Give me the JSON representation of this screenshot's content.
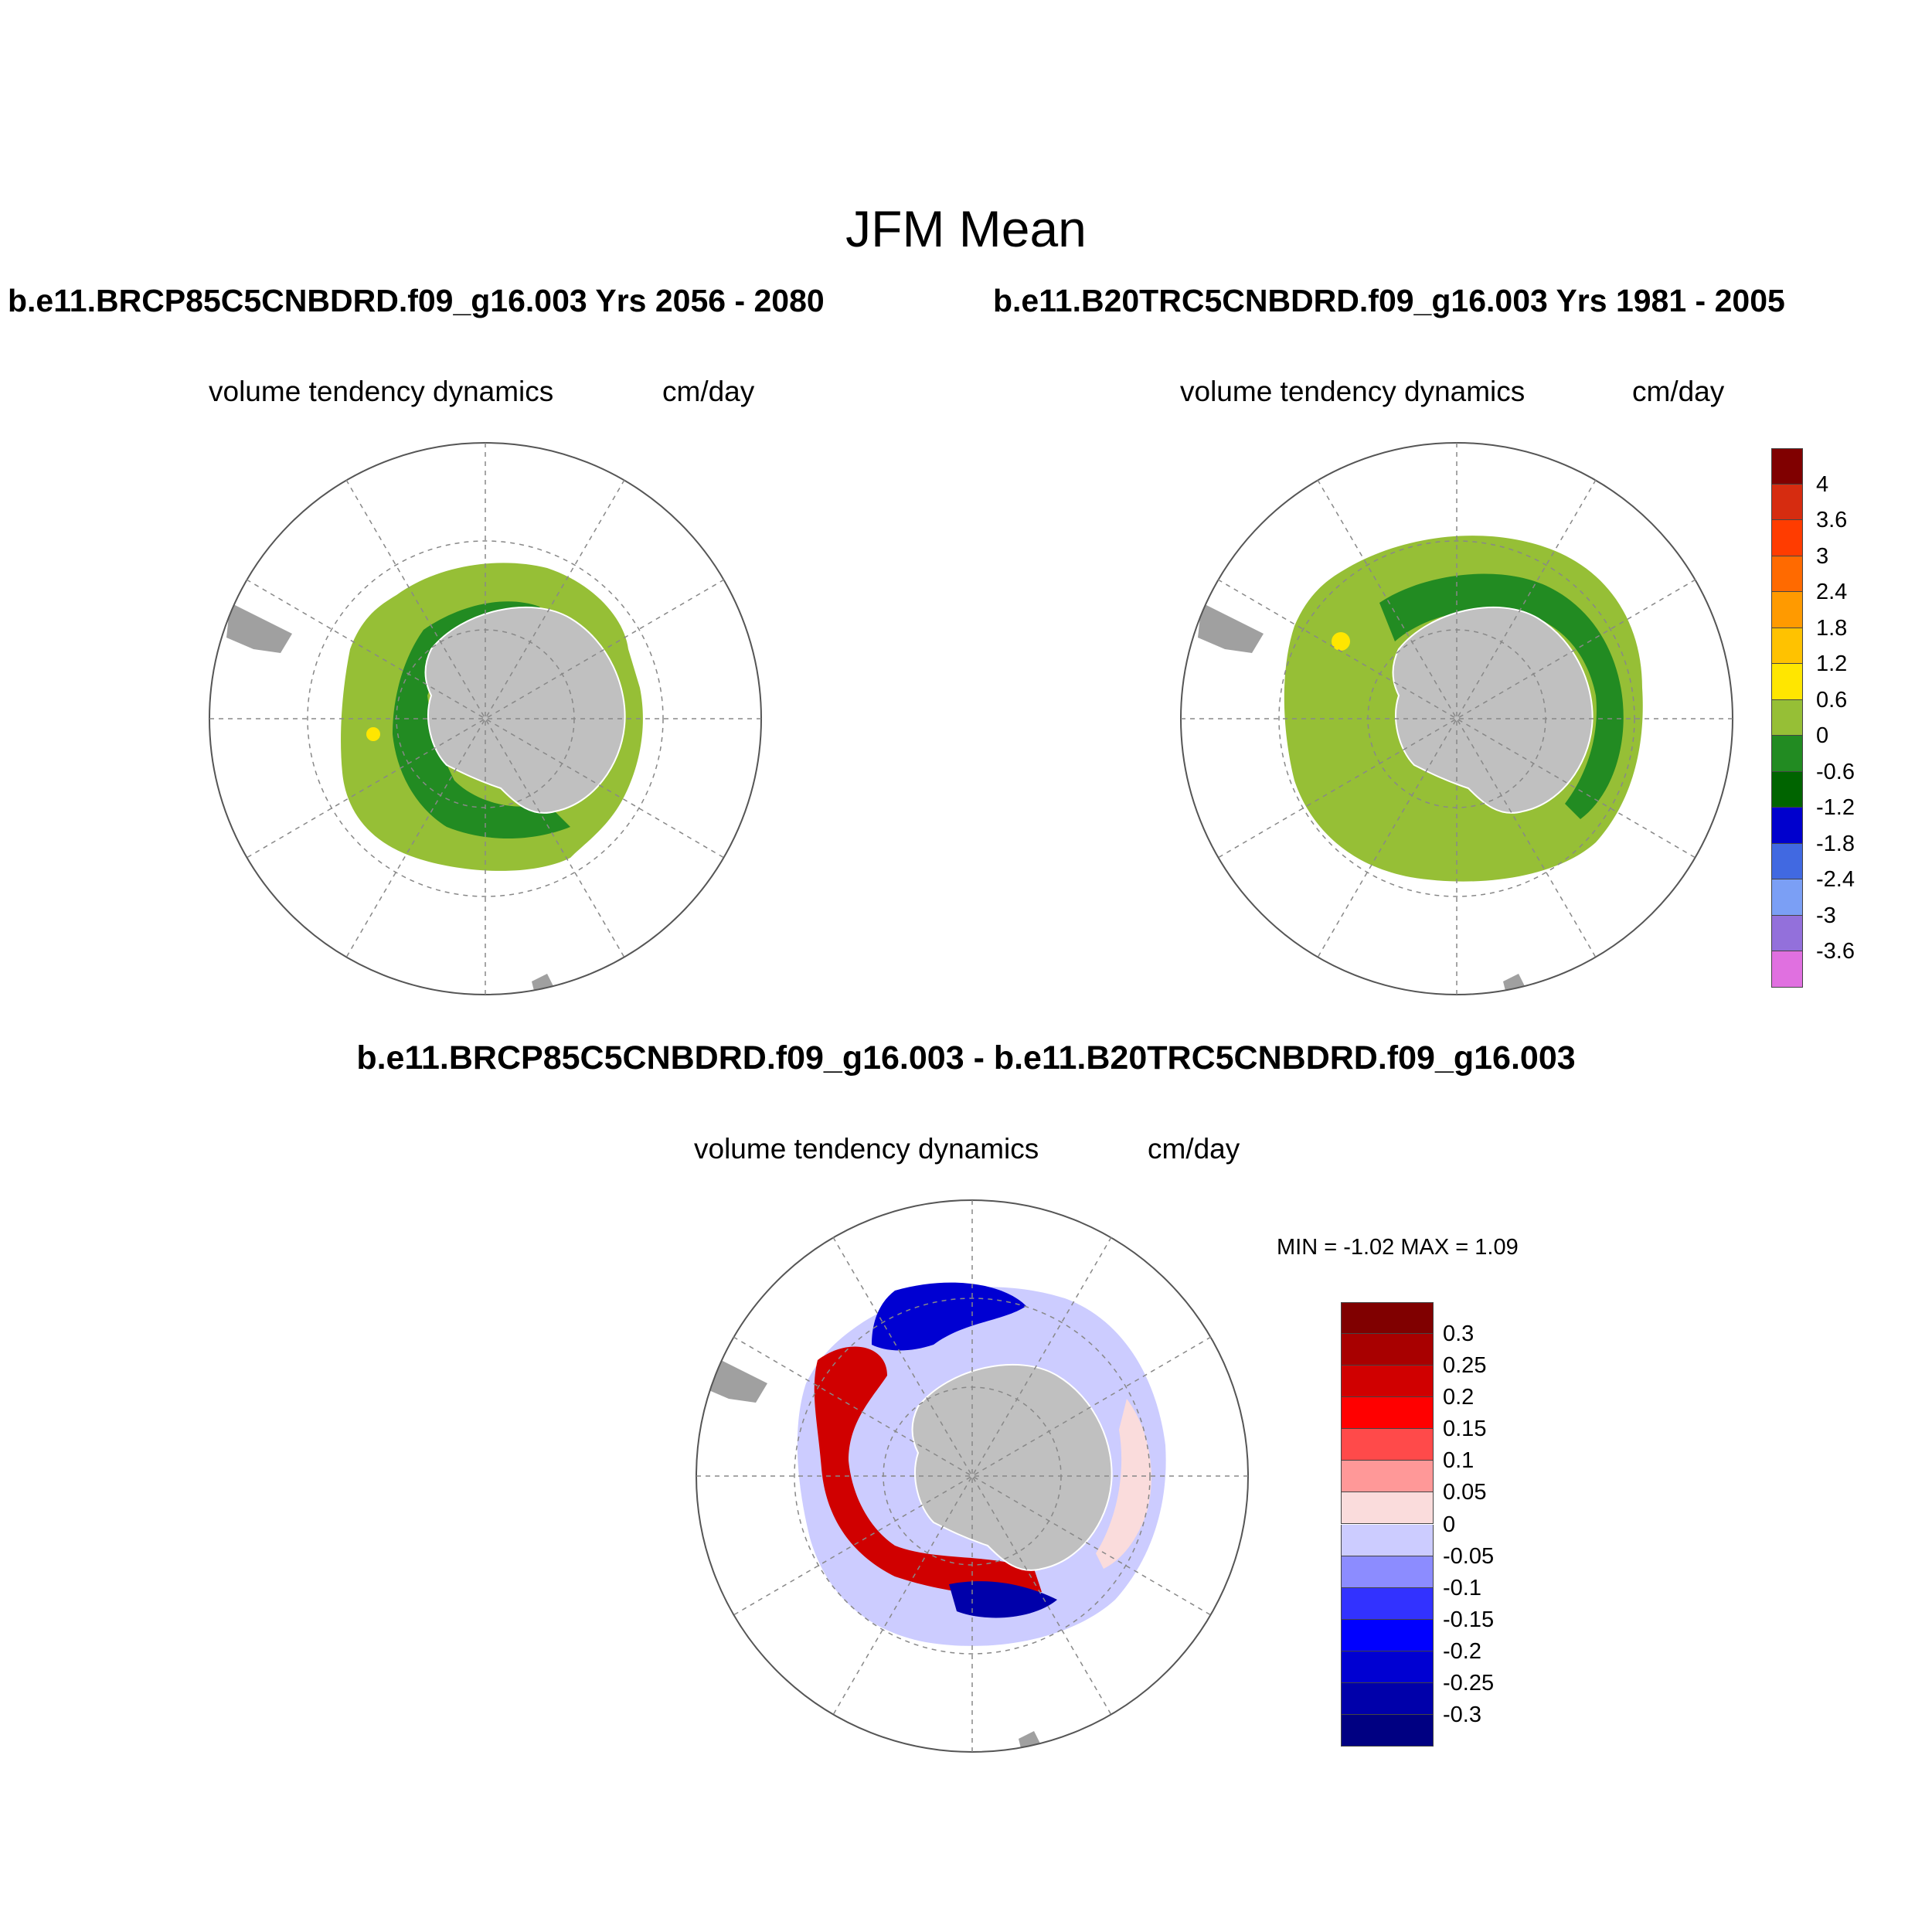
{
  "title": "JFM Mean",
  "panels": {
    "left": {
      "case_title": "b.e11.BRCP85C5CNBDRD.f09_g16.003  Yrs 2056 - 2080",
      "variable": "volume tendency dynamics",
      "units": "cm/day"
    },
    "right": {
      "case_title": "b.e11.B20TRC5CNBDRD.f09_g16.003  Yrs 1981 - 2005",
      "variable": "volume tendency dynamics",
      "units": "cm/day"
    },
    "diff": {
      "case_title": "b.e11.BRCP85C5CNBDRD.f09_g16.003 - b.e11.B20TRC5CNBDRD.f09_g16.003",
      "variable": "volume tendency dynamics",
      "units": "cm/day",
      "minmax": "MIN =  -1.02 MAX =   1.09"
    }
  },
  "colorbars": {
    "main": {
      "colors": [
        "#800000",
        "#d62c10",
        "#ff3c00",
        "#ff6a00",
        "#ff9a00",
        "#ffc200",
        "#ffe600",
        "#96bf36",
        "#228b22",
        "#006400",
        "#0000cd",
        "#4169e1",
        "#7b9ff5",
        "#9370db",
        "#e070e0"
      ],
      "labels": [
        "4",
        "3.6",
        "3",
        "2.4",
        "1.8",
        "1.2",
        "0.6",
        "0",
        "-0.6",
        "-1.2",
        "-1.8",
        "-2.4",
        "-3",
        "-3.6"
      ]
    },
    "diff": {
      "colors": [
        "#800000",
        "#a80000",
        "#d00000",
        "#ff0000",
        "#ff4a4a",
        "#ff9898",
        "#fadcdc",
        "#ccccff",
        "#8c8cff",
        "#3232ff",
        "#0000ff",
        "#0000d2",
        "#0000aa",
        "#000082"
      ],
      "labels": [
        "0.3",
        "0.25",
        "0.2",
        "0.15",
        "0.1",
        "0.05",
        "0",
        "-0.05",
        "-0.1",
        "-0.15",
        "-0.2",
        "-0.25",
        "-0.3"
      ]
    }
  }
}
